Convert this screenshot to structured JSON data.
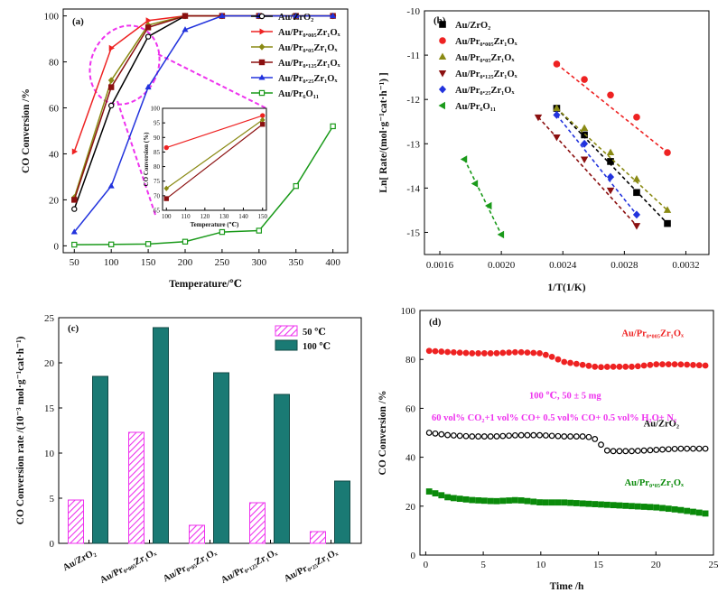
{
  "colors": {
    "au_zro2": "#000000",
    "pr0005": "#ee2222",
    "pr005": "#8a8a14",
    "pr0125": "#8b1010",
    "pr025": "#2233dd",
    "pr6o11": "#1a9a1a",
    "magenta": "#ee33ee",
    "teal": "#1a7a74",
    "green_d": "#0a8a0a"
  },
  "chart_data": [
    {
      "panel": "(a)",
      "type": "line",
      "xlabel": "Temperature/℃",
      "ylabel": "CO Conversion /%",
      "xlim": [
        35,
        420
      ],
      "ylim": [
        -3,
        103
      ],
      "xticks": [
        "50",
        "100",
        "150",
        "200",
        "250",
        "300",
        "350",
        "400"
      ],
      "yticks": [
        "0",
        "20",
        "40",
        "60",
        "80",
        "100"
      ],
      "legend_position": "top-right",
      "series": [
        {
          "key": "au_zro2",
          "name": "Au/ZrO₂",
          "marker": "circle-open",
          "x": [
            50,
            100,
            150,
            200,
            250,
            300,
            350,
            400
          ],
          "y": [
            16,
            61,
            91,
            100,
            100,
            100,
            100,
            100
          ]
        },
        {
          "key": "pr0005",
          "name": "Au/Pr₀.₀₀₅Zr₁Oₓ",
          "marker": "triangle-right",
          "x": [
            50,
            100,
            150,
            200,
            250,
            300,
            350,
            400
          ],
          "y": [
            41,
            86,
            98,
            100,
            100,
            100,
            100,
            100
          ]
        },
        {
          "key": "pr005",
          "name": "Au/Pr₀.₀₅Zr₁Oₓ",
          "marker": "diamond",
          "x": [
            50,
            100,
            150,
            200,
            250,
            300,
            350,
            400
          ],
          "y": [
            21,
            72,
            96,
            100,
            100,
            100,
            100,
            100
          ]
        },
        {
          "key": "pr0125",
          "name": "Au/Pr₀.₁₂₅Zr₁Oₓ",
          "marker": "square",
          "x": [
            50,
            100,
            150,
            200,
            250,
            300,
            350,
            400
          ],
          "y": [
            20,
            69,
            95,
            100,
            100,
            100,
            100,
            100
          ]
        },
        {
          "key": "pr025",
          "name": "Au/Pr₀.₂₅Zr₁Oₓ",
          "marker": "triangle-up",
          "x": [
            50,
            100,
            150,
            200,
            250,
            300,
            350,
            400
          ],
          "y": [
            6,
            26,
            69,
            94,
            100,
            100,
            100,
            100
          ]
        },
        {
          "key": "pr6o11",
          "name": "Au/Pr₆O₁₁",
          "marker": "square-open",
          "x": [
            50,
            100,
            150,
            200,
            250,
            300,
            350,
            400
          ],
          "y": [
            0.5,
            0.6,
            0.8,
            1.8,
            6,
            6.6,
            26,
            52
          ]
        }
      ],
      "inset": {
        "xlabel": "Temperature (℃)",
        "ylabel": "CO Conversion (%)",
        "xlim": [
          98,
          152
        ],
        "ylim": [
          65,
          100
        ],
        "xticks": [
          "100",
          "110",
          "120",
          "130",
          "140",
          "150"
        ],
        "yticks": [
          "65",
          "70",
          "75",
          "80",
          "85",
          "90",
          "95",
          "100"
        ],
        "series": [
          {
            "key": "pr0005",
            "x": [
              100,
              150
            ],
            "y": [
              86.5,
              97.5
            ]
          },
          {
            "key": "pr005",
            "x": [
              100,
              150
            ],
            "y": [
              72.5,
              96
            ]
          },
          {
            "key": "pr0125",
            "x": [
              100,
              150
            ],
            "y": [
              69,
              94.5
            ]
          }
        ]
      }
    },
    {
      "panel": "(b)",
      "type": "scatter",
      "xlabel": "1/T(1/K)",
      "ylabel": "Ln[ Rate/(mol·g⁻¹cat·h⁻¹) ]",
      "xlim": [
        0.0015,
        0.00335
      ],
      "ylim": [
        -15.5,
        -10
      ],
      "xticks": [
        "0.0016",
        "0.0020",
        "0.0024",
        "0.0028",
        "0.0032"
      ],
      "yticks": [
        "-10",
        "-11",
        "-12",
        "-13",
        "-14",
        "-15"
      ],
      "legend_position": "top-left",
      "series": [
        {
          "key": "au_zro2",
          "name": "Au/ZrO₂",
          "marker": "square",
          "x": [
            0.00236,
            0.00254,
            0.00271,
            0.00288,
            0.00308
          ],
          "y": [
            -12.2,
            -12.8,
            -13.4,
            -14.1,
            -14.8
          ]
        },
        {
          "key": "pr0005",
          "name": "Au/Pr₀.₀₀₅Zr₁Oₓ",
          "marker": "circle",
          "x": [
            0.00236,
            0.00254,
            0.00271,
            0.00288,
            0.00308
          ],
          "y": [
            -11.2,
            -11.55,
            -11.9,
            -12.4,
            -13.2
          ]
        },
        {
          "key": "pr005",
          "name": "Au/Pr₀.₀₅Zr₁Oₓ",
          "marker": "triangle-up",
          "x": [
            0.00236,
            0.00254,
            0.00271,
            0.00288,
            0.00308
          ],
          "y": [
            -12.2,
            -12.65,
            -13.2,
            -13.8,
            -14.5
          ]
        },
        {
          "key": "pr0125",
          "name": "Au/Pr₀.₁₂₅Zr₁Oₓ",
          "marker": "triangle-down",
          "x": [
            0.00224,
            0.00236,
            0.00254,
            0.00271,
            0.00288
          ],
          "y": [
            -12.4,
            -12.85,
            -13.35,
            -14.05,
            -14.85
          ]
        },
        {
          "key": "pr025",
          "name": "Au/Pr₀.₂₅Zr₁Oₓ",
          "marker": "diamond",
          "x": [
            0.00236,
            0.00254,
            0.00271,
            0.00288
          ],
          "y": [
            -12.35,
            -13.0,
            -13.75,
            -14.6
          ]
        },
        {
          "key": "pr6o11",
          "name": "Au/Pr₆O₁₁",
          "marker": "triangle-left",
          "x": [
            0.00176,
            0.00183,
            0.00192,
            0.002
          ],
          "y": [
            -13.35,
            -13.9,
            -14.4,
            -15.05
          ]
        }
      ]
    },
    {
      "panel": "(c)",
      "type": "bar",
      "xlabel": "",
      "ylabel": "CO Conversion rate /(10⁻³ mol·g⁻¹cat·h⁻¹)",
      "ylim": [
        0,
        25
      ],
      "yticks": [
        "0",
        "5",
        "10",
        "15",
        "20",
        "25"
      ],
      "categories": [
        "Au/ZrO₂",
        "Au/Pr₀.₀₀₅Zr₁Oₓ",
        "Au/Pr₀.₀₅Zr₁Oₓ",
        "Au/Pr₀.₁₂₅Zr₁Oₓ",
        "Au/Pr₀.₂₅Zr₁Oₓ"
      ],
      "legend_position": "top-right",
      "series": [
        {
          "name": "50 ℃",
          "key": "magenta",
          "values": [
            4.8,
            12.3,
            2.0,
            4.5,
            1.3
          ]
        },
        {
          "name": "100 ℃",
          "key": "teal",
          "values": [
            18.5,
            23.9,
            18.9,
            16.5,
            6.9
          ]
        }
      ]
    },
    {
      "panel": "(d)",
      "type": "scatter",
      "xlabel": "Time /h",
      "ylabel": "CO Conversion /%",
      "xlim": [
        -0.5,
        25
      ],
      "ylim": [
        0,
        100
      ],
      "xticks": [
        "0",
        "5",
        "10",
        "15",
        "20",
        "25"
      ],
      "yticks": [
        "0",
        "20",
        "40",
        "60",
        "80",
        "100"
      ],
      "conditions": "100 ℃, 50 ± 5 mg",
      "feed": "60 vol% CO₂+1 vol% CO+ 0.5 vol% CO+ 0.5 vol% H₂O+ N₂",
      "series": [
        {
          "key": "pr0005",
          "name": "Au/Pr₀.₀₀₅Zr₁Oₓ",
          "marker": "circle",
          "x": [
            0.3,
            2,
            4,
            6,
            8,
            10,
            11,
            12,
            14,
            15,
            16,
            18,
            20,
            22,
            24.3
          ],
          "y": [
            83.5,
            83,
            82.5,
            82.5,
            83,
            82.5,
            81,
            79,
            77.5,
            76.8,
            77,
            77,
            78,
            78,
            77.5
          ]
        },
        {
          "key": "au_zro2",
          "name": "Au/ZrO₂",
          "marker": "circle-open",
          "x": [
            0.3,
            2,
            4,
            6,
            8,
            10,
            12,
            14,
            15,
            15.5,
            16,
            18,
            20,
            22,
            24.3
          ],
          "y": [
            50,
            49,
            48.5,
            48.5,
            49,
            49,
            48.5,
            48.5,
            47,
            43,
            42.5,
            42.5,
            43,
            43.5,
            43.5
          ]
        },
        {
          "key": "green_d",
          "name": "Au/Pr₀.₀₅Zr₁Oₓ",
          "marker": "square",
          "x": [
            0.3,
            1,
            2,
            4,
            6,
            8,
            10,
            12,
            14,
            16,
            18,
            20,
            22,
            24.3
          ],
          "y": [
            26,
            25,
            23.5,
            22.5,
            22,
            22.5,
            21.5,
            21.5,
            21,
            20.5,
            20,
            19.5,
            18.5,
            17
          ]
        }
      ]
    }
  ]
}
